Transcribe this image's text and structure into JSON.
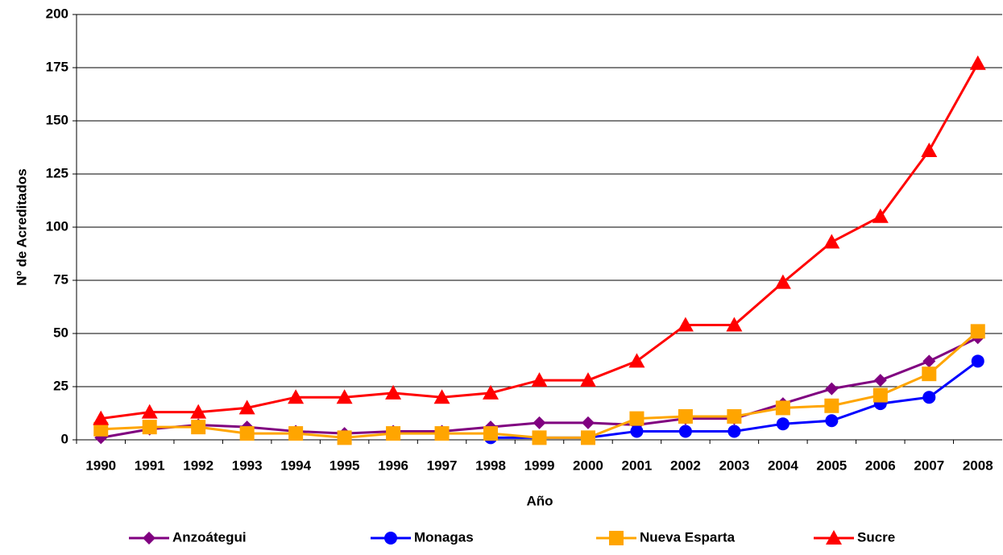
{
  "chart_data": {
    "type": "line",
    "x_label": "Año",
    "y_label": "Nº  de Acreditados",
    "categories": [
      "1990",
      "1991",
      "1992",
      "1993",
      "1994",
      "1995",
      "1996",
      "1997",
      "1998",
      "1999",
      "2000",
      "2001",
      "2002",
      "2003",
      "2004",
      "2005",
      "2006",
      "2007",
      "2008"
    ],
    "series": [
      {
        "name": "Anzoátegui",
        "color": "#800080",
        "marker": "diamond",
        "values": [
          1,
          5,
          7,
          6,
          4,
          3,
          4,
          4,
          6,
          8,
          8,
          7,
          10,
          10,
          17,
          24,
          28,
          37,
          48
        ]
      },
      {
        "name": "Monagas",
        "color": "#0000ff",
        "marker": "circle",
        "values": [
          null,
          null,
          null,
          null,
          null,
          null,
          null,
          null,
          1,
          1,
          1,
          4,
          4,
          4,
          7.5,
          9,
          17,
          20,
          37
        ]
      },
      {
        "name": "Nueva Esparta",
        "color": "#ffa500",
        "marker": "square",
        "values": [
          5,
          6,
          6,
          3,
          3,
          1,
          3,
          3,
          3,
          1,
          1,
          10,
          11,
          11,
          15,
          16,
          21,
          31,
          51
        ]
      },
      {
        "name": "Sucre",
        "color": "#ff0000",
        "marker": "triangle",
        "values": [
          10,
          13,
          13,
          15,
          20,
          20,
          22,
          20,
          22,
          28,
          28,
          37,
          54,
          54,
          74,
          93,
          105,
          136,
          177
        ]
      }
    ],
    "ylim": [
      0,
      200
    ],
    "yticks": [
      0,
      25,
      50,
      75,
      100,
      125,
      150,
      175,
      200
    ],
    "grid": true,
    "legend": "bottom"
  }
}
